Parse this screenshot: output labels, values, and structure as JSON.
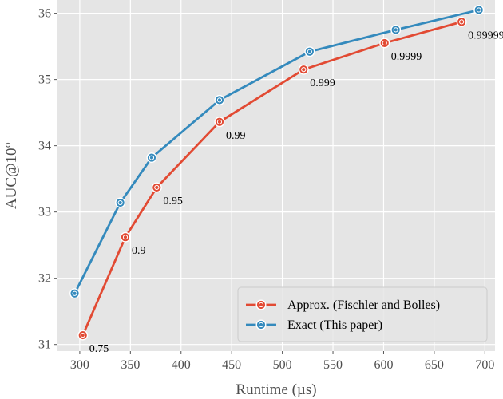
{
  "chart_data": {
    "type": "line",
    "xlabel": "Runtime (µs)",
    "ylabel": "AUC@10°",
    "xlim": [
      278,
      710
    ],
    "ylim": [
      30.9,
      36.2
    ],
    "xticks": [
      300,
      350,
      400,
      450,
      500,
      550,
      600,
      650,
      700
    ],
    "yticks": [
      31,
      32,
      33,
      34,
      35,
      36
    ],
    "grid": true,
    "legend_position": "bottom-right",
    "series": [
      {
        "name": "Approx. (Fischler and Bolles)",
        "color": "#E24A33",
        "x": [
          303,
          345,
          376,
          438,
          521,
          601,
          677
        ],
        "y": [
          31.14,
          32.62,
          33.37,
          34.36,
          35.15,
          35.55,
          35.87
        ],
        "labels": [
          "0.75",
          "0.9",
          "0.95",
          "0.99",
          "0.999",
          "0.9999",
          "0.99999"
        ]
      },
      {
        "name": "Exact (This paper)",
        "color": "#348ABD",
        "x": [
          295,
          340,
          371,
          438,
          527,
          612,
          694
        ],
        "y": [
          31.77,
          33.14,
          33.82,
          34.69,
          35.42,
          35.75,
          36.05
        ]
      }
    ]
  }
}
